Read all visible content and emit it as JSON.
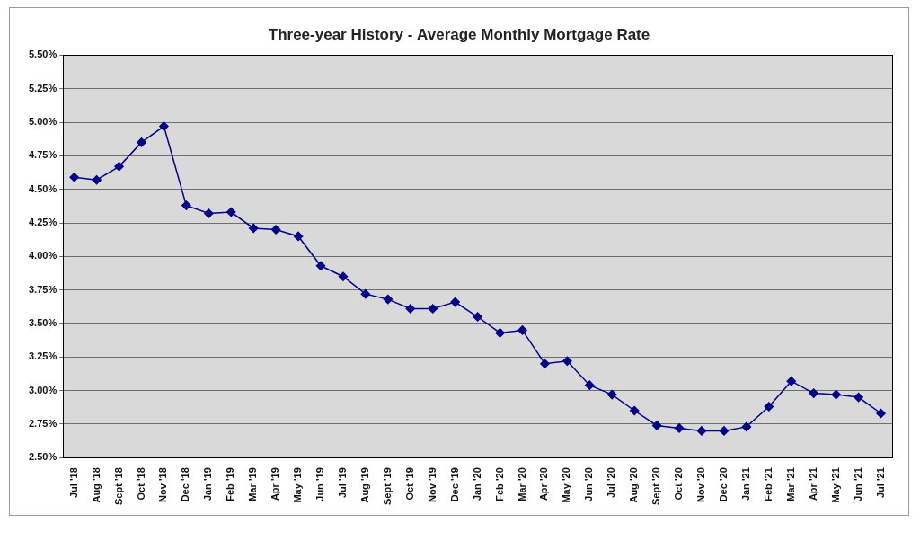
{
  "chart_data": {
    "type": "line",
    "title": "Three-year History - Average Monthly Mortgage Rate",
    "categories": [
      "Jul '18",
      "Aug '18",
      "Sept '18",
      "Oct '18",
      "Nov '18",
      "Dec '18",
      "Jan '19",
      "Feb '19",
      "Mar '19",
      "Apr '19",
      "May '19",
      "Jun '19",
      "Jul '19",
      "Aug '19",
      "Sept '19",
      "Oct '19",
      "Nov '19",
      "Dec '19",
      "Jan '20",
      "Feb '20",
      "Mar '20",
      "Apr '20",
      "May '20",
      "Jun '20",
      "Jul '20",
      "Aug '20",
      "Sept '20",
      "Oct '20",
      "Nov '20",
      "Dec '20",
      "Jan '21",
      "Feb '21",
      "Mar '21",
      "Apr '21",
      "May '21",
      "Jun '21",
      "Jul '21"
    ],
    "values": [
      4.59,
      4.57,
      4.67,
      4.85,
      4.97,
      4.38,
      4.32,
      4.33,
      4.21,
      4.2,
      4.15,
      3.93,
      3.85,
      3.72,
      3.68,
      3.61,
      3.61,
      3.66,
      3.55,
      3.43,
      3.45,
      3.2,
      3.22,
      3.04,
      2.97,
      2.85,
      2.74,
      2.72,
      2.7,
      2.7,
      2.73,
      2.88,
      3.07,
      2.98,
      2.97,
      2.95,
      2.83
    ],
    "color": "#00008b",
    "marker": "diamond",
    "line_style": "solid",
    "ylim": [
      2.5,
      5.5
    ],
    "yticks": [
      {
        "value": 2.5,
        "label": "2.50%"
      },
      {
        "value": 2.75,
        "label": "2.75%"
      },
      {
        "value": 3.0,
        "label": "3.00%"
      },
      {
        "value": 3.25,
        "label": "3.25%"
      },
      {
        "value": 3.5,
        "label": "3.50%"
      },
      {
        "value": 3.75,
        "label": "3.75%"
      },
      {
        "value": 4.0,
        "label": "4.00%"
      },
      {
        "value": 4.25,
        "label": "4.25%"
      },
      {
        "value": 4.5,
        "label": "4.50%"
      },
      {
        "value": 4.75,
        "label": "4.75%"
      },
      {
        "value": 5.0,
        "label": "5.00%"
      },
      {
        "value": 5.25,
        "label": "5.25%"
      },
      {
        "value": 5.5,
        "label": "5.50%"
      }
    ],
    "grid": true
  }
}
